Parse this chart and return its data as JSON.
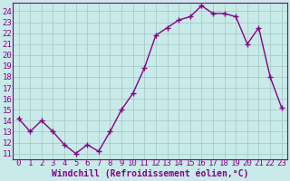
{
  "x": [
    0,
    1,
    2,
    3,
    4,
    5,
    6,
    7,
    8,
    9,
    10,
    11,
    12,
    13,
    14,
    15,
    16,
    17,
    18,
    19,
    20,
    21,
    22,
    23
  ],
  "y": [
    14.2,
    13.0,
    14.0,
    13.0,
    11.8,
    11.0,
    11.8,
    11.2,
    13.0,
    15.0,
    16.5,
    18.8,
    21.8,
    22.5,
    23.2,
    23.5,
    24.5,
    23.8,
    23.8,
    23.5,
    21.0,
    22.5,
    18.0,
    15.2
  ],
  "color": "#880088",
  "bg_color": "#c8eae8",
  "grid_color": "#a8ccca",
  "axis_color": "#880088",
  "xlabel": "Windchill (Refroidissement éolien,°C)",
  "ylim": [
    10.5,
    24.8
  ],
  "yticks": [
    11,
    12,
    13,
    14,
    15,
    16,
    17,
    18,
    19,
    20,
    21,
    22,
    23,
    24
  ],
  "xticks": [
    0,
    1,
    2,
    3,
    4,
    5,
    6,
    7,
    8,
    9,
    10,
    11,
    12,
    13,
    14,
    15,
    16,
    17,
    18,
    19,
    20,
    21,
    22,
    23
  ],
  "marker": "+",
  "linewidth": 1.0,
  "markersize": 4,
  "markeredgewidth": 1.0,
  "font_size": 6.5,
  "xlabel_fontsize": 7.0
}
